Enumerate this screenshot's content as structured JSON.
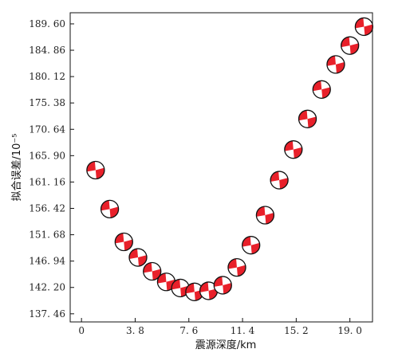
{
  "chart_data": {
    "type": "scatter",
    "marker": "focal-mechanism-beachball",
    "xlabel": "震源深度/km",
    "ylabel": "拟合误差/10⁻⁵",
    "xlim": [
      -0.8,
      20.6
    ],
    "ylim": [
      136.0,
      191.6
    ],
    "xticks": [
      0,
      3.8,
      7.6,
      11.4,
      15.2,
      19.0
    ],
    "xtick_labels": [
      "0",
      "3. 8",
      "7. 6",
      "11. 4",
      "15. 2",
      "19. 0"
    ],
    "yticks": [
      137.46,
      142.2,
      146.94,
      151.68,
      156.42,
      161.16,
      165.9,
      170.64,
      175.38,
      180.12,
      184.86,
      189.6
    ],
    "ytick_labels": [
      "137. 46",
      "142. 20",
      "146. 94",
      "151. 68",
      "156. 42",
      "161. 16",
      "165. 90",
      "170. 64",
      "175. 38",
      "180. 12",
      "184. 86",
      "189. 60"
    ],
    "grid": false,
    "points": [
      {
        "x": 1.0,
        "y": 163.3
      },
      {
        "x": 2.0,
        "y": 156.3
      },
      {
        "x": 3.0,
        "y": 150.4
      },
      {
        "x": 4.0,
        "y": 147.6
      },
      {
        "x": 5.0,
        "y": 145.1
      },
      {
        "x": 6.0,
        "y": 143.2
      },
      {
        "x": 7.0,
        "y": 142.1
      },
      {
        "x": 8.0,
        "y": 141.4
      },
      {
        "x": 9.0,
        "y": 141.6
      },
      {
        "x": 10.0,
        "y": 142.6
      },
      {
        "x": 11.0,
        "y": 145.8
      },
      {
        "x": 12.0,
        "y": 149.8
      },
      {
        "x": 13.0,
        "y": 155.2
      },
      {
        "x": 14.0,
        "y": 161.5
      },
      {
        "x": 15.0,
        "y": 167.0
      },
      {
        "x": 16.0,
        "y": 172.5
      },
      {
        "x": 17.0,
        "y": 177.8
      },
      {
        "x": 18.0,
        "y": 182.3
      },
      {
        "x": 19.0,
        "y": 185.7
      },
      {
        "x": 20.0,
        "y": 189.1
      }
    ],
    "colors": {
      "beachball_fill": "#e8202a",
      "beachball_edge": "#111111",
      "axis": "#111111"
    }
  }
}
